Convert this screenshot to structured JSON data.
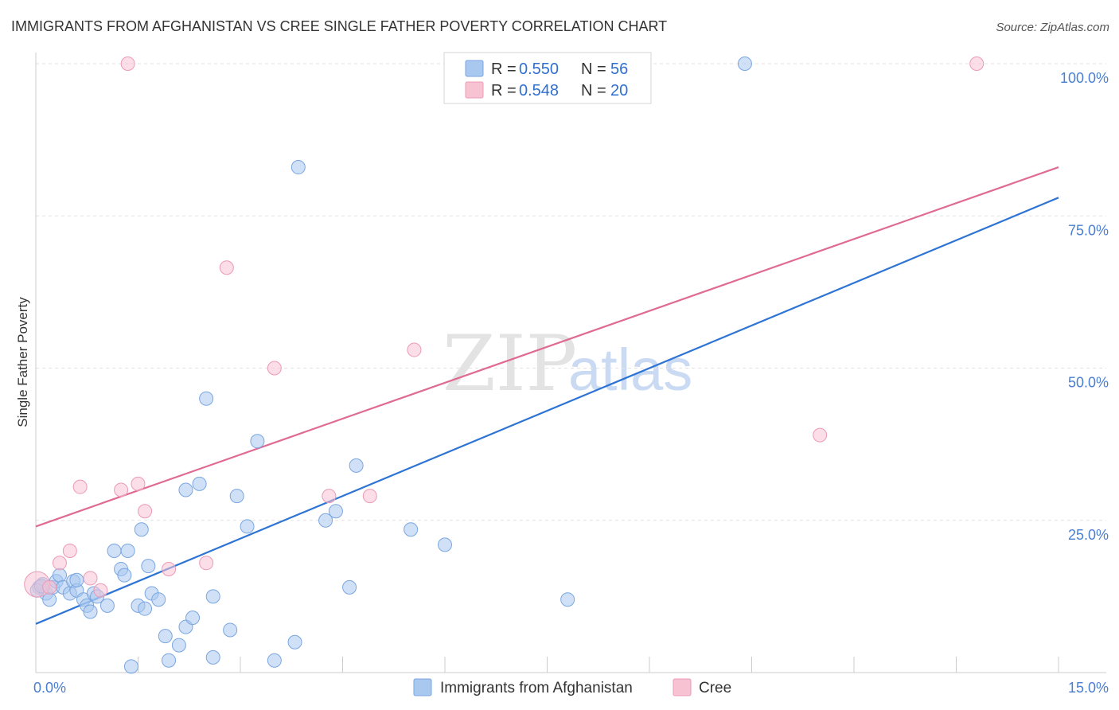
{
  "chart_data": {
    "type": "scatter",
    "title": "IMMIGRANTS FROM AFGHANISTAN VS CREE SINGLE FATHER POVERTY CORRELATION CHART",
    "source": "Source: ZipAtlas.com",
    "xlabel": "",
    "ylabel": "Single Father Poverty",
    "xlim": [
      0,
      15
    ],
    "ylim": [
      0,
      100
    ],
    "x_ticks": [
      {
        "value": 0,
        "label": "0.0%"
      },
      {
        "value": 15,
        "label": "15.0%"
      }
    ],
    "y_ticks": [
      {
        "value": 25,
        "label": "25.0%"
      },
      {
        "value": 50,
        "label": "50.0%"
      },
      {
        "value": 75,
        "label": "75.0%"
      },
      {
        "value": 100,
        "label": "100.0%"
      }
    ],
    "grid": true,
    "watermark": {
      "zip": "ZIP",
      "atlas": "atlas"
    },
    "legend_top": [
      {
        "r_label": "R =",
        "r_value": "0.550",
        "n_label": "N =",
        "n_value": "56"
      },
      {
        "r_label": "R =",
        "r_value": "0.548",
        "n_label": "N =",
        "n_value": "20"
      }
    ],
    "series": [
      {
        "name": "Immigrants from Afghanistan",
        "color": "#a9c8f0",
        "stroke": "#7aa6e0",
        "line_color": "#2d74d4",
        "trend": [
          [
            0,
            8
          ],
          [
            15,
            78
          ]
        ],
        "points": [
          [
            0.05,
            14
          ],
          [
            0.1,
            14.5
          ],
          [
            0.15,
            13
          ],
          [
            0.2,
            12
          ],
          [
            0.25,
            14
          ],
          [
            0.3,
            15
          ],
          [
            0.35,
            16
          ],
          [
            0.4,
            14
          ],
          [
            0.5,
            13
          ],
          [
            0.55,
            15
          ],
          [
            0.6,
            13.5
          ],
          [
            0.7,
            12
          ],
          [
            0.75,
            11
          ],
          [
            0.8,
            10
          ],
          [
            0.85,
            13
          ],
          [
            0.9,
            12.5
          ],
          [
            1.05,
            11
          ],
          [
            1.15,
            20
          ],
          [
            1.25,
            17
          ],
          [
            1.3,
            16
          ],
          [
            1.35,
            20
          ],
          [
            1.4,
            1
          ],
          [
            1.5,
            11
          ],
          [
            1.55,
            23.5
          ],
          [
            1.6,
            10.5
          ],
          [
            1.65,
            17.5
          ],
          [
            1.7,
            13
          ],
          [
            1.8,
            12
          ],
          [
            1.9,
            6
          ],
          [
            1.95,
            2
          ],
          [
            2.1,
            4.5
          ],
          [
            2.2,
            7.5
          ],
          [
            2.2,
            30
          ],
          [
            2.3,
            9
          ],
          [
            2.4,
            31
          ],
          [
            2.5,
            45
          ],
          [
            2.6,
            2.5
          ],
          [
            2.6,
            12.5
          ],
          [
            2.85,
            7
          ],
          [
            2.95,
            29
          ],
          [
            3.1,
            24
          ],
          [
            3.25,
            38
          ],
          [
            3.5,
            2
          ],
          [
            3.8,
            5
          ],
          [
            3.85,
            83
          ],
          [
            4.25,
            25
          ],
          [
            4.4,
            26.5
          ],
          [
            4.6,
            14
          ],
          [
            4.7,
            34
          ],
          [
            5.5,
            23.5
          ],
          [
            6,
            21
          ],
          [
            7.8,
            12
          ],
          [
            10.4,
            100
          ],
          [
            0.02,
            13.5
          ],
          [
            0.08,
            14.2
          ],
          [
            0.6,
            15.2
          ]
        ]
      },
      {
        "name": "Cree",
        "color": "#f7c3d3",
        "stroke": "#ec9ab5",
        "line_color": "#e06a93",
        "trend": [
          [
            0,
            24
          ],
          [
            15,
            83
          ]
        ],
        "points": [
          [
            0.02,
            14.5
          ],
          [
            0.35,
            18
          ],
          [
            0.5,
            20
          ],
          [
            0.65,
            30.5
          ],
          [
            0.8,
            15.5
          ],
          [
            0.95,
            13.5
          ],
          [
            1.25,
            30
          ],
          [
            1.35,
            100
          ],
          [
            1.5,
            31
          ],
          [
            1.6,
            26.5
          ],
          [
            1.95,
            17
          ],
          [
            2.5,
            18
          ],
          [
            2.8,
            66.5
          ],
          [
            3.5,
            50
          ],
          [
            4.3,
            29
          ],
          [
            4.9,
            29
          ],
          [
            5.55,
            53
          ],
          [
            11.5,
            39
          ],
          [
            13.8,
            100
          ],
          [
            0.2,
            14
          ]
        ]
      }
    ]
  }
}
